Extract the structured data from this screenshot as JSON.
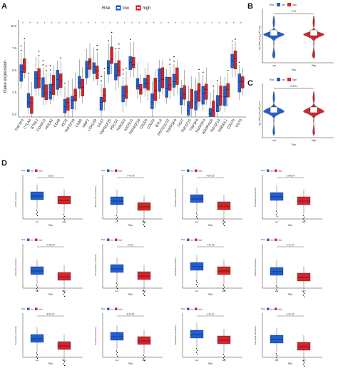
{
  "panels": {
    "A": {
      "label": "A",
      "legend_title": "Risk",
      "legend_low": "low",
      "legend_high": "high",
      "ylabel": "Gene expression",
      "y_ticks": [
        "0.0",
        "2.5",
        "5.0",
        "7.5",
        "10.0"
      ],
      "genes": [
        "TNFSF4",
        "CTLA4",
        "BTNL2",
        "CD40LG",
        "HHLA2",
        "CD48",
        "IDO2",
        "TNFSF18",
        "CD86",
        "NRP1",
        "LGALS9",
        "CD27",
        "TNFRSF25",
        "PDCD1",
        "TMIGD2",
        "ICOSLG",
        "TNFRSF18",
        "CD200",
        "CD244",
        "BTLA",
        "PDCD1LG2",
        "TNFRSF8",
        "TIGIT",
        "TNFSF15",
        "TNFSF9",
        "TNFRSF4",
        "ADORA2A",
        "TNFSF14",
        "KIR3DL1",
        "CD27b",
        "CD70"
      ]
    },
    "B": {
      "label": "B",
      "legend_title": "Risk",
      "legend_low": "low",
      "legend_high": "high",
      "pvalue": "0.11",
      "ylabel": "ips_ctla4_neg_pd1_neg",
      "xlabel": "Risk",
      "cats": [
        "Low",
        "High"
      ]
    },
    "C": {
      "label": "C",
      "legend_title": "Risk",
      "legend_low": "low",
      "legend_high": "high",
      "pvalue": "0.0071",
      "ylabel": "ips_ctla4_pos_pd1_pos",
      "xlabel": "Risk",
      "cats": [
        "Low",
        "High"
      ]
    },
    "D": {
      "label": "D",
      "legend_title": "Risk",
      "legend_low": "low",
      "legend_high": "high",
      "xlabel": "Risk",
      "cats": [
        "low",
        "high"
      ],
      "plots": [
        {
          "ylabel": "ATRA sensitivity",
          "pvalue": "1e-15"
        },
        {
          "ylabel": "Bortezomib sensitivity",
          "pvalue": "7.4e-09"
        },
        {
          "ylabel": "Cisplatin sensitivity",
          "pvalue": "4.5e-15"
        },
        {
          "ylabel": "Docetaxel sensitivity",
          "pvalue": "0.00014"
        },
        {
          "ylabel": "Erlotinib sensitivity",
          "pvalue": "0.00079"
        },
        {
          "ylabel": "Gemcitabine sensitivity",
          "pvalue": "2e-13"
        },
        {
          "ylabel": "Lapatinib sensitivity",
          "pvalue": "7.1e-15"
        },
        {
          "ylabel": "Nilotinib sensitivity",
          "pvalue": "2.1e-10"
        },
        {
          "ylabel": "Sorafenib sensitivity",
          "pvalue": "8.9e-13"
        },
        {
          "ylabel": "Sunitinib sensitivity",
          "pvalue": "8.4e-15"
        },
        {
          "ylabel": "Vinblastine sensitivity",
          "pvalue": "1.4e-11"
        },
        {
          "ylabel": "Vorinostat sensitivity",
          "pvalue": "4.3e-15"
        }
      ]
    }
  },
  "colors": {
    "low": "#1f5fd6",
    "high": "#d6242a"
  }
}
